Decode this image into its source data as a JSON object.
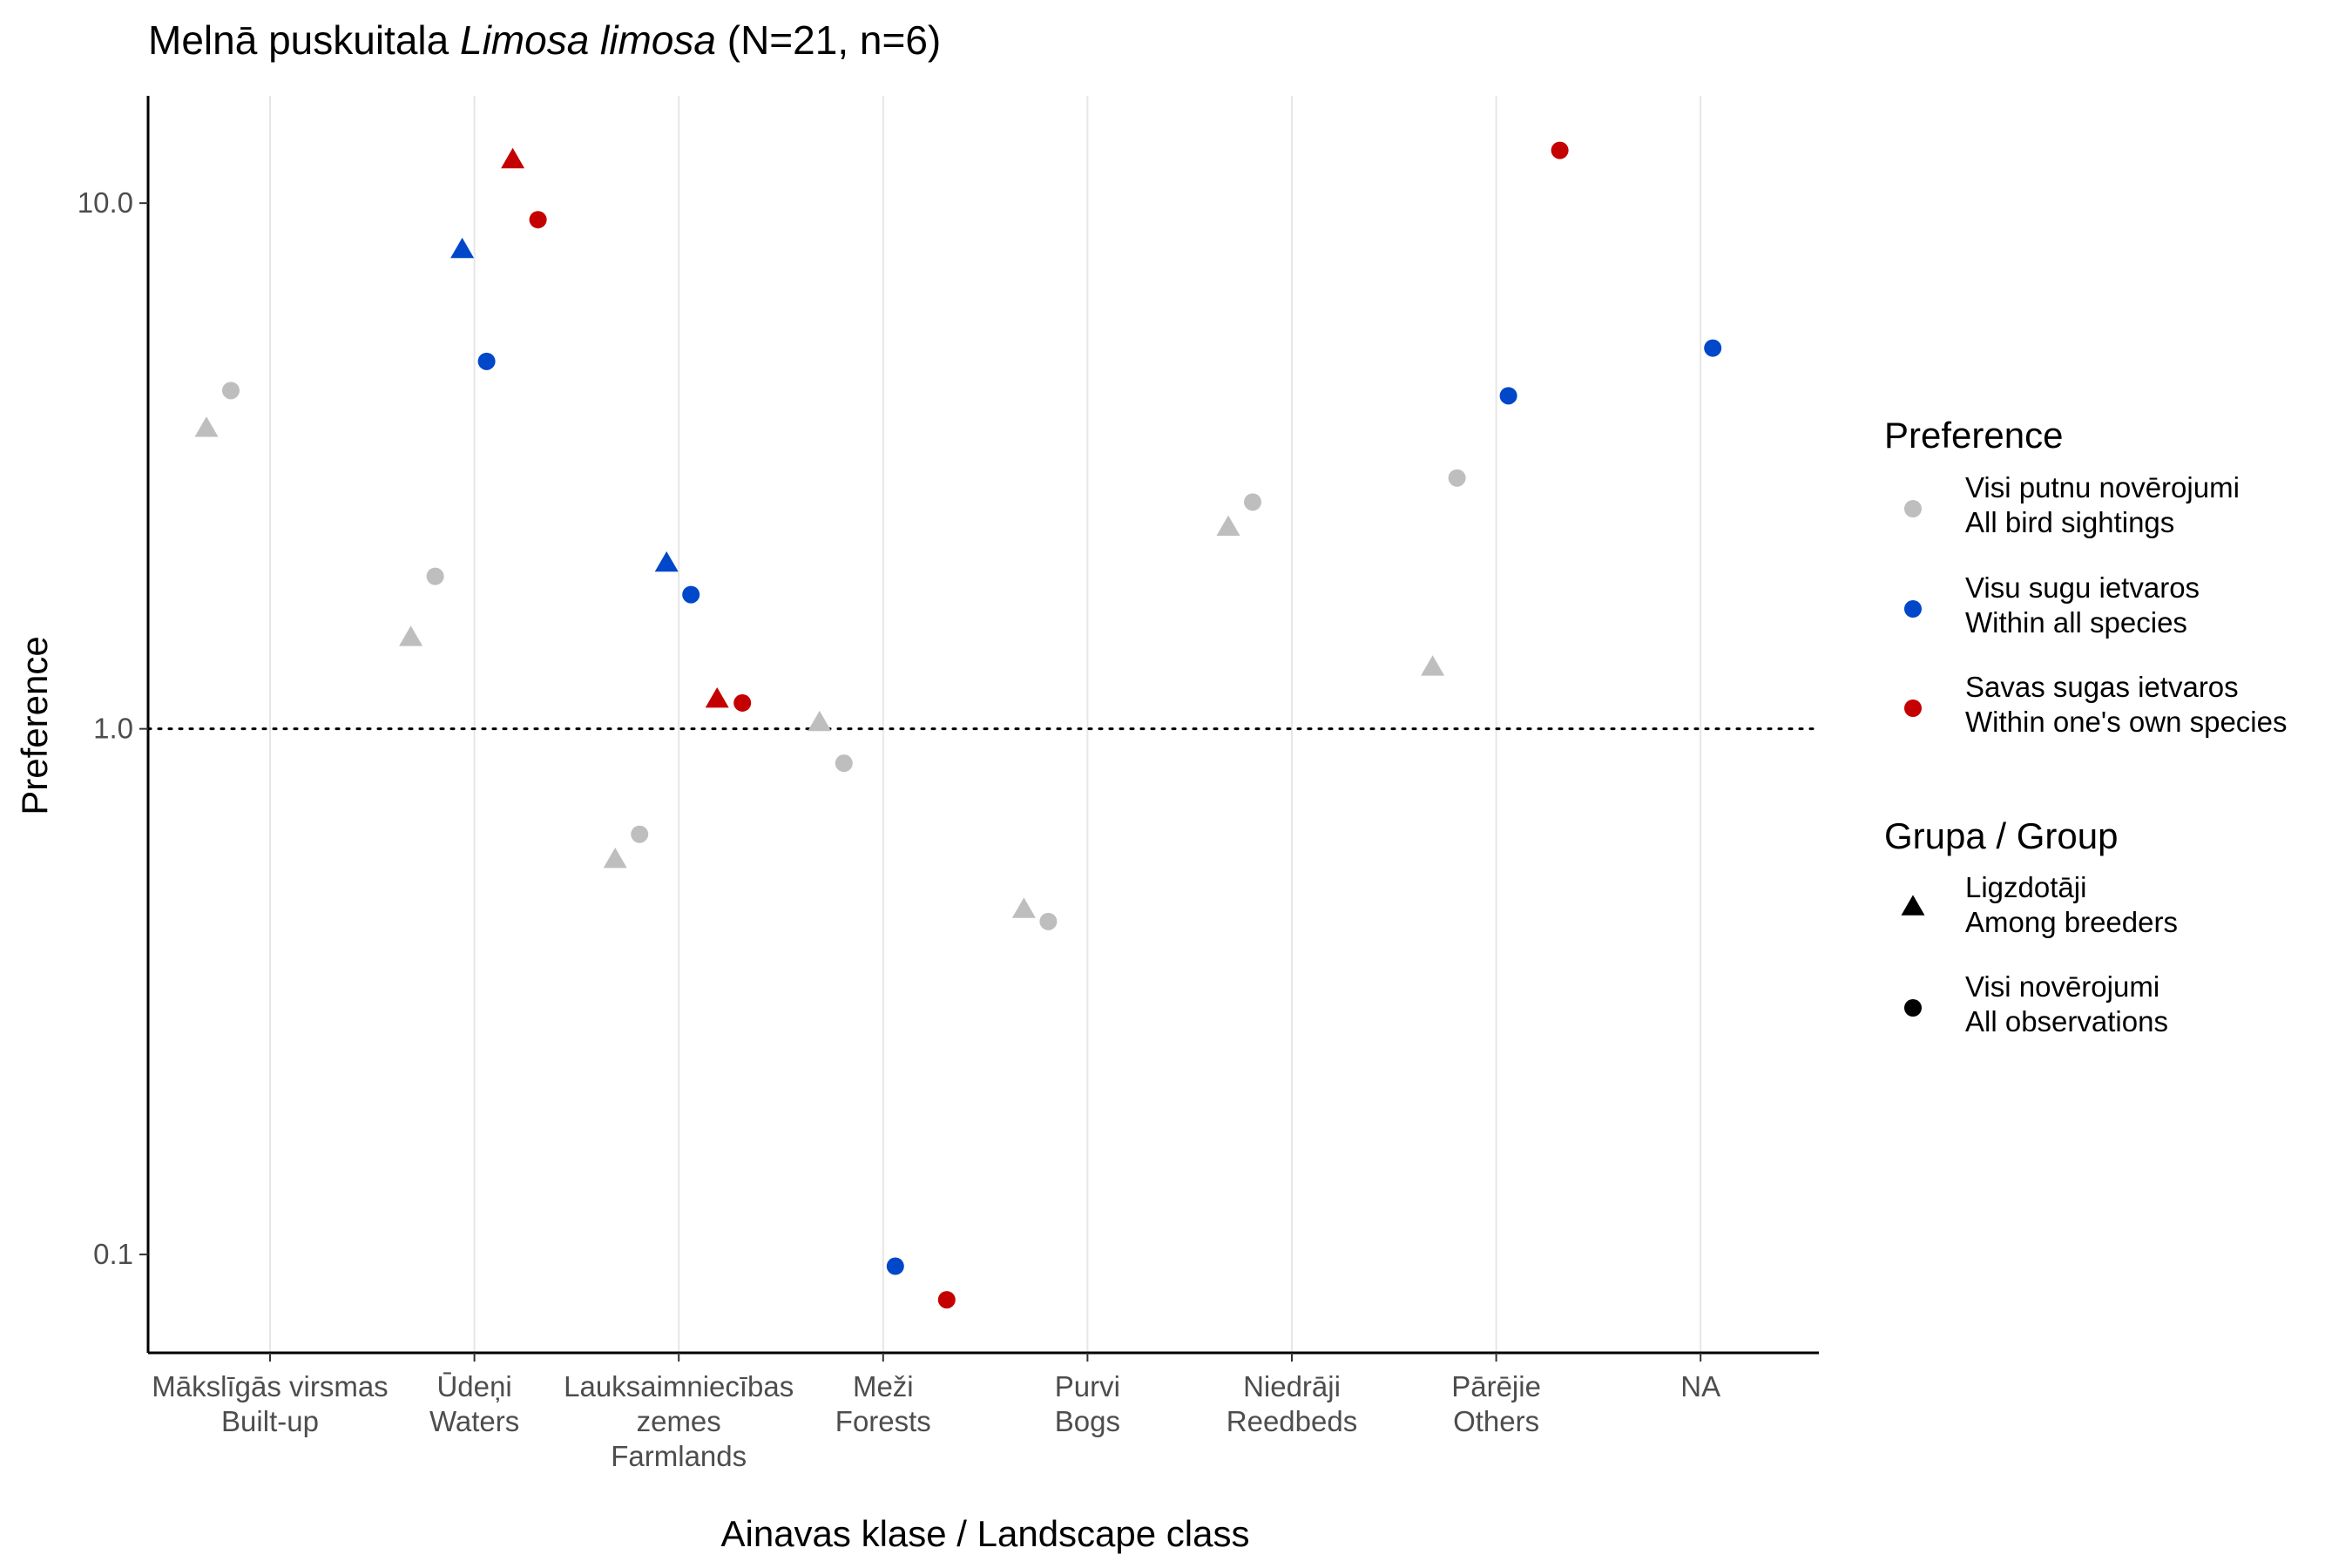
{
  "chart_data": {
    "type": "scatter",
    "title": {
      "prefix": "Melnā puskuitala ",
      "species": "Limosa limosa",
      "suffix": " (N=21, n=6)"
    },
    "xlabel": "Ainavas klase / Landscape class",
    "ylabel": "Preference",
    "yscale": "log10",
    "ylim": [
      0.065,
      16
    ],
    "yticks": [
      "0.1",
      "1.0",
      "10.0"
    ],
    "reference_line": 1.0,
    "grid": "vertical major lines",
    "categories": [
      [
        "Mākslīgās virsmas",
        "Built-up"
      ],
      [
        "Ūdeņi",
        "Waters"
      ],
      [
        "Lauksaimniecības",
        "zemes",
        "Farmlands"
      ],
      [
        "Meži",
        "Forests"
      ],
      [
        "Purvi",
        "Bogs"
      ],
      [
        "Niedrāji",
        "Reedbeds"
      ],
      [
        "Pārējie",
        "Others"
      ],
      [
        "NA"
      ]
    ],
    "colors": {
      "all_birds": "#bebebe",
      "all_species": "#0047c9",
      "own_species": "#c40000"
    },
    "legend_placement": "right",
    "legend": {
      "color_title": "Preference",
      "color_items": [
        {
          "key": "all_birds",
          "line1": "Visi putnu novērojumi",
          "line2": "All bird sightings"
        },
        {
          "key": "all_species",
          "line1": "Visu sugu ietvaros",
          "line2": "Within all species"
        },
        {
          "key": "own_species",
          "line1": "Savas sugas ietvaros",
          "line2": "Within one's own species"
        }
      ],
      "shape_title": "Grupa / Group",
      "shape_items": [
        {
          "key": "breeders",
          "line1": "Ligzdotāji",
          "line2": "Among breeders"
        },
        {
          "key": "all_obs",
          "line1": "Visi novērojumi",
          "line2": "All observations"
        }
      ]
    },
    "points": [
      {
        "category": 0,
        "color": "all_birds",
        "shape": "breeders",
        "y": 3.7
      },
      {
        "category": 0,
        "color": "all_birds",
        "shape": "all_obs",
        "y": 4.4
      },
      {
        "category": 1,
        "color": "all_birds",
        "shape": "breeders",
        "y": 1.48
      },
      {
        "category": 1,
        "color": "all_birds",
        "shape": "all_obs",
        "y": 1.95
      },
      {
        "category": 1,
        "color": "all_species",
        "shape": "breeders",
        "y": 8.1
      },
      {
        "category": 1,
        "color": "all_species",
        "shape": "all_obs",
        "y": 5.0
      },
      {
        "category": 1,
        "color": "own_species",
        "shape": "breeders",
        "y": 12.0
      },
      {
        "category": 1,
        "color": "own_species",
        "shape": "all_obs",
        "y": 9.3
      },
      {
        "category": 2,
        "color": "all_birds",
        "shape": "breeders",
        "y": 0.56
      },
      {
        "category": 2,
        "color": "all_birds",
        "shape": "all_obs",
        "y": 0.63
      },
      {
        "category": 2,
        "color": "all_species",
        "shape": "breeders",
        "y": 2.05
      },
      {
        "category": 2,
        "color": "all_species",
        "shape": "all_obs",
        "y": 1.8
      },
      {
        "category": 2,
        "color": "own_species",
        "shape": "breeders",
        "y": 1.13
      },
      {
        "category": 2,
        "color": "own_species",
        "shape": "all_obs",
        "y": 1.12
      },
      {
        "category": 3,
        "color": "all_birds",
        "shape": "breeders",
        "y": 1.02
      },
      {
        "category": 3,
        "color": "all_birds",
        "shape": "all_obs",
        "y": 0.86
      },
      {
        "category": 3,
        "color": "all_species",
        "shape": "all_obs",
        "y": 0.095
      },
      {
        "category": 3,
        "color": "own_species",
        "shape": "all_obs",
        "y": 0.082
      },
      {
        "category": 4,
        "color": "all_birds",
        "shape": "breeders",
        "y": 0.45
      },
      {
        "category": 4,
        "color": "all_birds",
        "shape": "all_obs",
        "y": 0.43
      },
      {
        "category": 5,
        "color": "all_birds",
        "shape": "breeders",
        "y": 2.4
      },
      {
        "category": 5,
        "color": "all_birds",
        "shape": "all_obs",
        "y": 2.7
      },
      {
        "category": 6,
        "color": "all_birds",
        "shape": "breeders",
        "y": 1.3
      },
      {
        "category": 6,
        "color": "all_birds",
        "shape": "all_obs",
        "y": 3.0
      },
      {
        "category": 6,
        "color": "all_species",
        "shape": "all_obs",
        "y": 4.3
      },
      {
        "category": 6,
        "color": "own_species",
        "shape": "all_obs",
        "y": 12.6
      },
      {
        "category": 7,
        "color": "all_species",
        "shape": "all_obs",
        "y": 5.3
      }
    ]
  }
}
